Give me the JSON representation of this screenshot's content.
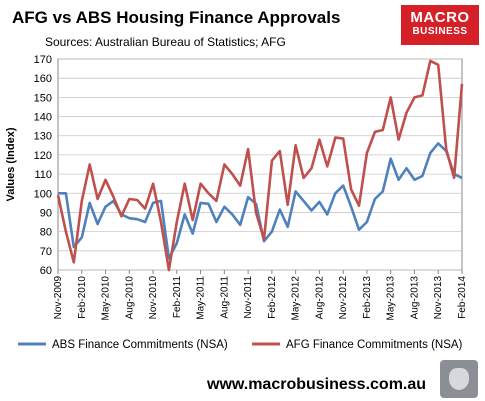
{
  "header": {
    "title": "AFG vs ABS Housing Finance Approvals",
    "subtitle": "Sources: Australian Bureau of Statistics; AFG"
  },
  "logo": {
    "line1": "MACRO",
    "line2": "BUSINESS"
  },
  "footer": {
    "url": "www.macrobusiness.com.au"
  },
  "colors": {
    "abs": "#4f81bd",
    "afg": "#c0504d",
    "logo_bg": "#d62027"
  },
  "chart_data": {
    "type": "line",
    "ylabel": "Values (Index)",
    "ylim": [
      60,
      170
    ],
    "yticks": [
      60,
      70,
      80,
      90,
      100,
      110,
      120,
      130,
      140,
      150,
      160,
      170
    ],
    "grid": true,
    "legend_position": "bottom",
    "x_tick_labels": [
      "Nov-2009",
      "Feb-2010",
      "May-2010",
      "Aug-2010",
      "Nov-2010",
      "Feb-2011",
      "May-2011",
      "Aug-2011",
      "Nov-2011",
      "Feb-2012",
      "May-2012",
      "Aug-2012",
      "Nov-2012",
      "Feb-2013",
      "May-2013",
      "Aug-2013",
      "Nov-2013",
      "Feb-2014"
    ],
    "x": [
      "Nov-2009",
      "Dec-2009",
      "Jan-2010",
      "Feb-2010",
      "Mar-2010",
      "Apr-2010",
      "May-2010",
      "Jun-2010",
      "Jul-2010",
      "Aug-2010",
      "Sep-2010",
      "Oct-2010",
      "Nov-2010",
      "Dec-2010",
      "Jan-2011",
      "Feb-2011",
      "Mar-2011",
      "Apr-2011",
      "May-2011",
      "Jun-2011",
      "Jul-2011",
      "Aug-2011",
      "Sep-2011",
      "Oct-2011",
      "Nov-2011",
      "Dec-2011",
      "Jan-2012",
      "Feb-2012",
      "Mar-2012",
      "Apr-2012",
      "May-2012",
      "Jun-2012",
      "Jul-2012",
      "Aug-2012",
      "Sep-2012",
      "Oct-2012",
      "Nov-2012",
      "Dec-2012",
      "Jan-2013",
      "Feb-2013",
      "Mar-2013",
      "Apr-2013",
      "May-2013",
      "Jun-2013",
      "Jul-2013",
      "Aug-2013",
      "Sep-2013",
      "Oct-2013",
      "Nov-2013",
      "Dec-2013",
      "Jan-2014",
      "Feb-2014"
    ],
    "series": [
      {
        "name": "ABS Finance Commitments (NSA)",
        "values": [
          100,
          100,
          72,
          77,
          95,
          84,
          93,
          96,
          89,
          87,
          86.5,
          85,
          95,
          96,
          66,
          74,
          89,
          79,
          95,
          94.5,
          85,
          93,
          89,
          83.5,
          98,
          94.5,
          75,
          80,
          91.5,
          82.5,
          101,
          96,
          91,
          95.5,
          89,
          100,
          104,
          93,
          81,
          85,
          97,
          101,
          118,
          107,
          113,
          107,
          109,
          121,
          126,
          122,
          110,
          108
        ]
      },
      {
        "name": "AFG Finance Commitments (NSA)",
        "values": [
          99,
          80,
          64,
          96,
          115,
          97,
          107,
          98,
          88,
          97,
          96.5,
          92,
          105,
          85,
          60,
          85,
          105,
          86,
          105,
          100,
          96,
          115,
          110,
          104,
          123,
          90,
          76,
          117,
          122,
          94,
          125,
          108,
          113,
          128,
          114,
          129,
          128.5,
          102,
          93.5,
          121,
          132,
          133,
          150,
          128,
          142,
          150,
          151,
          169,
          167,
          123,
          108,
          157
        ]
      }
    ]
  }
}
